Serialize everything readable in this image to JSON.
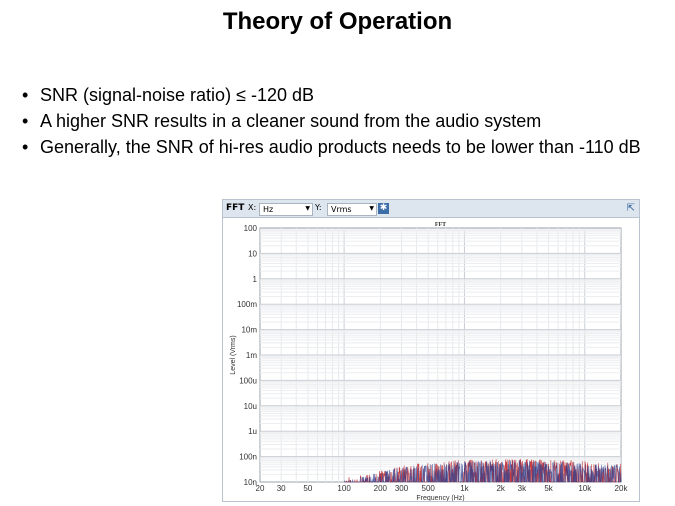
{
  "slide": {
    "title": "Theory of Operation",
    "bullets": [
      "SNR (signal-noise ratio) ≤ -120 dB",
      "A higher SNR results in a cleaner sound from the audio system",
      "Generally, the SNR of hi-res audio products needs to be lower than -110 dB"
    ]
  },
  "fft_panel": {
    "toolbar": {
      "label": "FFT",
      "x_label": "X:",
      "x_value": "Hz",
      "y_label": "Y:",
      "y_value": "Vrms"
    },
    "icons": {
      "settings": "gear-icon",
      "popout": "popout-icon",
      "dropdown": "dropdown-arrow-icon"
    }
  },
  "chart_data": {
    "type": "line",
    "title": "FFT",
    "xlabel": "Frequency (Hz)",
    "ylabel": "Level (Vrms)",
    "x_scale": "log",
    "y_scale": "log",
    "xlim": [
      20,
      20000
    ],
    "ylim": [
      1e-08,
      100
    ],
    "grid": true,
    "x_ticks": [
      {
        "v": 20,
        "label": "20"
      },
      {
        "v": 30,
        "label": "30"
      },
      {
        "v": 50,
        "label": "50"
      },
      {
        "v": 100,
        "label": "100"
      },
      {
        "v": 200,
        "label": "200"
      },
      {
        "v": 300,
        "label": "300"
      },
      {
        "v": 500,
        "label": "500"
      },
      {
        "v": 1000,
        "label": "1k"
      },
      {
        "v": 2000,
        "label": "2k"
      },
      {
        "v": 3000,
        "label": "3k"
      },
      {
        "v": 5000,
        "label": "5k"
      },
      {
        "v": 10000,
        "label": "10k"
      },
      {
        "v": 20000,
        "label": "20k"
      }
    ],
    "y_ticks": [
      {
        "v": 100,
        "label": "100"
      },
      {
        "v": 10,
        "label": "10"
      },
      {
        "v": 1,
        "label": "1"
      },
      {
        "v": 0.1,
        "label": "100m"
      },
      {
        "v": 0.01,
        "label": "10m"
      },
      {
        "v": 0.001,
        "label": "1m"
      },
      {
        "v": 0.0001,
        "label": "100u"
      },
      {
        "v": 1e-05,
        "label": "10u"
      },
      {
        "v": 1e-06,
        "label": "1u"
      },
      {
        "v": 1e-07,
        "label": "100n"
      },
      {
        "v": 1e-08,
        "label": "10n"
      }
    ],
    "series": [
      {
        "color": "#c0282d",
        "x": [
          100,
          150,
          200,
          300,
          500,
          1000,
          2000,
          3000,
          5000,
          10000,
          20000
        ],
        "y": [
          1e-08,
          1.3e-08,
          2e-08,
          3e-08,
          4e-08,
          5e-08,
          5.5e-08,
          5.5e-08,
          5e-08,
          4.5e-08,
          3.5e-08
        ]
      },
      {
        "color": "#2b3f8f",
        "x": [
          100,
          150,
          200,
          300,
          500,
          1000,
          2000,
          3000,
          5000,
          10000,
          20000
        ],
        "y": [
          1e-08,
          1.3e-08,
          2e-08,
          3e-08,
          4e-08,
          5e-08,
          5.5e-08,
          5.5e-08,
          5e-08,
          4.5e-08,
          3.5e-08
        ]
      }
    ]
  }
}
